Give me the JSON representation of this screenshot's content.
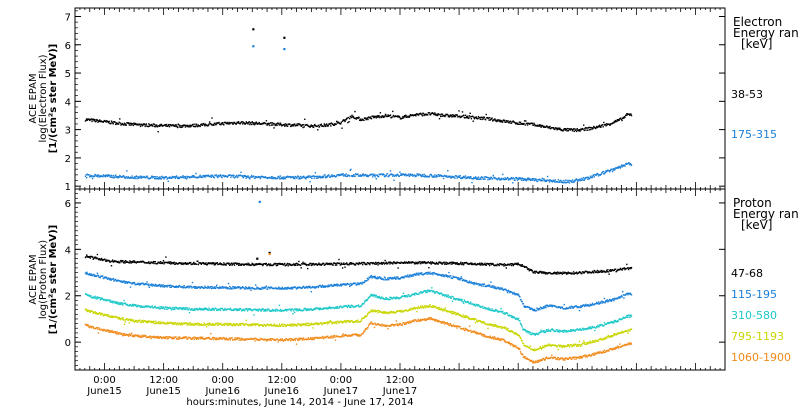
{
  "chart_data": [
    {
      "type": "scatter",
      "panel": "electron",
      "ylabel": [
        "ACE EPAM",
        "log(Electron Flux)",
        "[1/(cm²s ster MeV)]"
      ],
      "ylim": [
        0.9,
        7.3
      ],
      "yticks": [
        1,
        2,
        3,
        4,
        5,
        6,
        7
      ],
      "legend_title": [
        "Electron",
        "Energy ran",
        "[keV]"
      ],
      "series": [
        {
          "name": "38-53",
          "color": "#000000",
          "profile": [
            [
              0,
              3.42
            ],
            [
              3,
              3.36
            ],
            [
              6,
              3.3
            ],
            [
              9,
              3.24
            ],
            [
              12,
              3.2
            ],
            [
              15,
              3.18
            ],
            [
              18,
              3.16
            ],
            [
              21,
              3.15
            ],
            [
              24,
              3.17
            ],
            [
              27,
              3.2
            ],
            [
              30,
              3.24
            ],
            [
              33,
              3.27
            ],
            [
              36,
              3.25
            ],
            [
              39,
              3.22
            ],
            [
              42,
              3.2
            ],
            [
              45,
              3.18
            ],
            [
              48,
              3.15
            ],
            [
              51,
              3.18
            ],
            [
              54,
              3.28
            ],
            [
              56,
              3.5
            ],
            [
              58,
              3.38
            ],
            [
              60,
              3.45
            ],
            [
              63,
              3.52
            ],
            [
              66,
              3.45
            ],
            [
              69,
              3.55
            ],
            [
              72,
              3.58
            ],
            [
              75,
              3.52
            ],
            [
              78,
              3.5
            ],
            [
              81,
              3.45
            ],
            [
              84,
              3.4
            ],
            [
              87,
              3.32
            ],
            [
              90,
              3.25
            ],
            [
              93,
              3.2
            ],
            [
              96,
              3.1
            ],
            [
              99,
              3.02
            ],
            [
              102,
              3.0
            ],
            [
              105,
              3.08
            ],
            [
              108,
              3.2
            ],
            [
              111,
              3.4
            ],
            [
              112,
              3.55
            ]
          ],
          "outliers": [
            [
              36.2,
              6.55
            ],
            [
              42.5,
              6.25
            ]
          ]
        },
        {
          "name": "175-315",
          "color": "#1a7fd8",
          "profile": [
            [
              0,
              1.42
            ],
            [
              6,
              1.38
            ],
            [
              12,
              1.34
            ],
            [
              18,
              1.32
            ],
            [
              24,
              1.36
            ],
            [
              30,
              1.38
            ],
            [
              36,
              1.35
            ],
            [
              42,
              1.33
            ],
            [
              48,
              1.34
            ],
            [
              54,
              1.42
            ],
            [
              60,
              1.4
            ],
            [
              66,
              1.42
            ],
            [
              72,
              1.4
            ],
            [
              78,
              1.35
            ],
            [
              84,
              1.3
            ],
            [
              90,
              1.28
            ],
            [
              96,
              1.22
            ],
            [
              100,
              1.18
            ],
            [
              104,
              1.3
            ],
            [
              108,
              1.55
            ],
            [
              112,
              1.8
            ]
          ],
          "outliers": [
            [
              36.2,
              5.95
            ],
            [
              42.5,
              5.85
            ]
          ]
        }
      ]
    },
    {
      "type": "scatter",
      "panel": "proton",
      "xlabel": "hours:minutes, June 14, 2014 - June 17, 2014",
      "xlim": [
        0,
        132
      ],
      "xticks": [
        {
          "x": 6,
          "label": "0:00",
          "sublabel": "June15"
        },
        {
          "x": 18,
          "label": "12:00",
          "sublabel": "June15"
        },
        {
          "x": 30,
          "label": "0:00",
          "sublabel": "June16"
        },
        {
          "x": 42,
          "label": "12:00",
          "sublabel": "June16"
        },
        {
          "x": 54,
          "label": "0:00",
          "sublabel": "June17"
        },
        {
          "x": 66,
          "label": "12:00",
          "sublabel": "June17"
        }
      ],
      "ylabel": [
        "ACE EPAM",
        "log(Proton Flux)",
        "[1/(cm²s ster MeV)]"
      ],
      "ylim": [
        -1.2,
        6.6
      ],
      "yticks": [
        0,
        2,
        4,
        6
      ],
      "legend_title": [
        "Proton",
        "Energy ran",
        "[keV]"
      ],
      "series": [
        {
          "name": "47-68",
          "color": "#000000",
          "profile": [
            [
              0,
              3.85
            ],
            [
              3,
              3.7
            ],
            [
              6,
              3.55
            ],
            [
              9,
              3.5
            ],
            [
              12,
              3.48
            ],
            [
              18,
              3.45
            ],
            [
              24,
              3.42
            ],
            [
              30,
              3.4
            ],
            [
              36,
              3.38
            ],
            [
              42,
              3.37
            ],
            [
              48,
              3.38
            ],
            [
              54,
              3.4
            ],
            [
              60,
              3.42
            ],
            [
              66,
              3.45
            ],
            [
              72,
              3.45
            ],
            [
              78,
              3.42
            ],
            [
              84,
              3.38
            ],
            [
              88,
              3.35
            ],
            [
              90,
              3.4
            ],
            [
              93,
              3.05
            ],
            [
              96,
              3.0
            ],
            [
              100,
              3.0
            ],
            [
              104,
              3.05
            ],
            [
              108,
              3.1
            ],
            [
              112,
              3.2
            ]
          ],
          "outliers": [
            [
              37.0,
              3.6
            ],
            [
              39.5,
              3.85
            ]
          ]
        },
        {
          "name": "115-195",
          "color": "#1a7fd8",
          "profile": [
            [
              0,
              3.15
            ],
            [
              3,
              2.95
            ],
            [
              6,
              2.8
            ],
            [
              9,
              2.65
            ],
            [
              12,
              2.55
            ],
            [
              18,
              2.45
            ],
            [
              24,
              2.4
            ],
            [
              30,
              2.38
            ],
            [
              36,
              2.36
            ],
            [
              42,
              2.35
            ],
            [
              48,
              2.4
            ],
            [
              54,
              2.5
            ],
            [
              58,
              2.55
            ],
            [
              60,
              2.85
            ],
            [
              63,
              2.75
            ],
            [
              66,
              2.8
            ],
            [
              69,
              2.95
            ],
            [
              72,
              3.0
            ],
            [
              75,
              2.9
            ],
            [
              78,
              2.75
            ],
            [
              81,
              2.55
            ],
            [
              84,
              2.45
            ],
            [
              87,
              2.3
            ],
            [
              90,
              2.05
            ],
            [
              91,
              1.6
            ],
            [
              93,
              1.4
            ],
            [
              96,
              1.6
            ],
            [
              99,
              1.5
            ],
            [
              102,
              1.55
            ],
            [
              106,
              1.7
            ],
            [
              110,
              1.9
            ],
            [
              112,
              2.1
            ]
          ],
          "outliers": [
            [
              37.5,
              6.05
            ]
          ]
        },
        {
          "name": "310-580",
          "color": "#1ec8c8",
          "profile": [
            [
              0,
              2.2
            ],
            [
              3,
              2.0
            ],
            [
              6,
              1.85
            ],
            [
              9,
              1.7
            ],
            [
              12,
              1.6
            ],
            [
              18,
              1.5
            ],
            [
              24,
              1.45
            ],
            [
              30,
              1.45
            ],
            [
              36,
              1.42
            ],
            [
              42,
              1.4
            ],
            [
              48,
              1.45
            ],
            [
              54,
              1.55
            ],
            [
              58,
              1.6
            ],
            [
              60,
              2.05
            ],
            [
              63,
              1.9
            ],
            [
              66,
              1.95
            ],
            [
              69,
              2.1
            ],
            [
              72,
              2.25
            ],
            [
              75,
              2.05
            ],
            [
              78,
              1.85
            ],
            [
              81,
              1.65
            ],
            [
              84,
              1.45
            ],
            [
              87,
              1.3
            ],
            [
              90,
              1.0
            ],
            [
              91,
              0.55
            ],
            [
              93,
              0.35
            ],
            [
              96,
              0.55
            ],
            [
              99,
              0.5
            ],
            [
              102,
              0.55
            ],
            [
              106,
              0.7
            ],
            [
              110,
              0.95
            ],
            [
              112,
              1.15
            ]
          ],
          "outliers": []
        },
        {
          "name": "795-1193",
          "color": "#c8d600",
          "profile": [
            [
              0,
              1.55
            ],
            [
              3,
              1.35
            ],
            [
              6,
              1.2
            ],
            [
              9,
              1.05
            ],
            [
              12,
              0.95
            ],
            [
              18,
              0.85
            ],
            [
              24,
              0.8
            ],
            [
              30,
              0.8
            ],
            [
              36,
              0.78
            ],
            [
              42,
              0.75
            ],
            [
              48,
              0.8
            ],
            [
              54,
              0.9
            ],
            [
              58,
              0.95
            ],
            [
              60,
              1.4
            ],
            [
              63,
              1.3
            ],
            [
              66,
              1.35
            ],
            [
              69,
              1.5
            ],
            [
              72,
              1.6
            ],
            [
              75,
              1.4
            ],
            [
              78,
              1.2
            ],
            [
              81,
              1.0
            ],
            [
              84,
              0.8
            ],
            [
              87,
              0.65
            ],
            [
              90,
              0.35
            ],
            [
              91,
              -0.1
            ],
            [
              93,
              -0.3
            ],
            [
              96,
              -0.1
            ],
            [
              99,
              -0.15
            ],
            [
              102,
              -0.1
            ],
            [
              106,
              0.1
            ],
            [
              110,
              0.4
            ],
            [
              112,
              0.55
            ]
          ],
          "outliers": []
        },
        {
          "name": "1060-1900",
          "color": "#f08a1a",
          "profile": [
            [
              0,
              0.9
            ],
            [
              3,
              0.7
            ],
            [
              6,
              0.55
            ],
            [
              9,
              0.4
            ],
            [
              12,
              0.3
            ],
            [
              18,
              0.22
            ],
            [
              24,
              0.2
            ],
            [
              30,
              0.18
            ],
            [
              36,
              0.15
            ],
            [
              42,
              0.12
            ],
            [
              48,
              0.18
            ],
            [
              54,
              0.3
            ],
            [
              58,
              0.35
            ],
            [
              60,
              0.85
            ],
            [
              63,
              0.75
            ],
            [
              66,
              0.8
            ],
            [
              69,
              0.95
            ],
            [
              72,
              1.05
            ],
            [
              75,
              0.85
            ],
            [
              78,
              0.65
            ],
            [
              81,
              0.45
            ],
            [
              84,
              0.25
            ],
            [
              87,
              0.1
            ],
            [
              90,
              -0.25
            ],
            [
              91,
              -0.6
            ],
            [
              93,
              -0.85
            ],
            [
              96,
              -0.65
            ],
            [
              99,
              -0.7
            ],
            [
              102,
              -0.65
            ],
            [
              106,
              -0.45
            ],
            [
              110,
              -0.2
            ],
            [
              112,
              -0.05
            ]
          ],
          "outliers": [
            [
              39.5,
              3.8
            ]
          ]
        }
      ]
    }
  ]
}
